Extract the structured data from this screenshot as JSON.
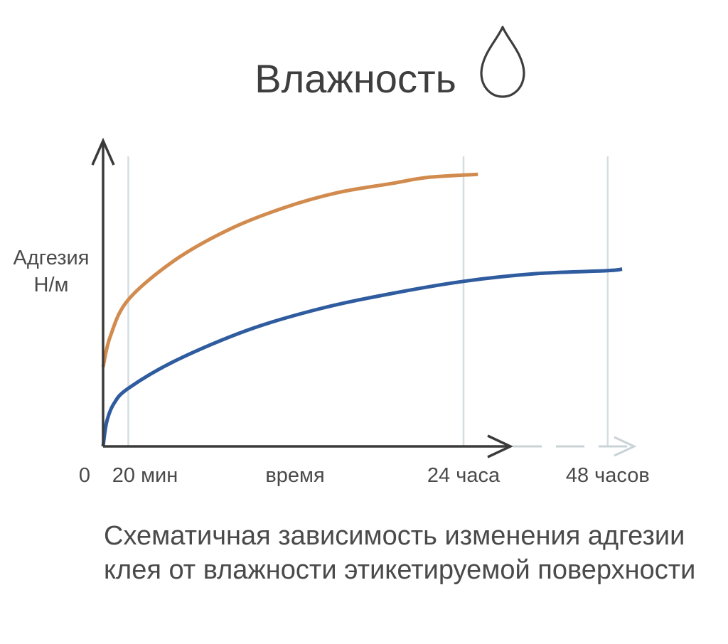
{
  "header": {
    "title": "Влажность",
    "icon": "water-drop-icon"
  },
  "chart_data": {
    "type": "line",
    "ylabel_lines": [
      "Адгезия",
      "Н/м"
    ],
    "xlabel": "время",
    "x_ticks": [
      {
        "label": "0",
        "pos": 0
      },
      {
        "label": "20 мин",
        "pos": 0.07
      },
      {
        "label": "24 часа",
        "pos": 1.0
      },
      {
        "label": "48 часов",
        "pos": 1.4
      }
    ],
    "gridlines_at": [
      0.07,
      1.0,
      1.4
    ],
    "xlim": [
      0,
      1.6
    ],
    "ylim": [
      0,
      1
    ],
    "series": [
      {
        "color": "#d28b4e",
        "points": [
          [
            0,
            0.26
          ],
          [
            0.02,
            0.36
          ],
          [
            0.07,
            0.48
          ],
          [
            0.2,
            0.61
          ],
          [
            0.35,
            0.71
          ],
          [
            0.5,
            0.78
          ],
          [
            0.65,
            0.83
          ],
          [
            0.8,
            0.86
          ],
          [
            0.9,
            0.88
          ],
          [
            1.04,
            0.89
          ]
        ]
      },
      {
        "color": "#2f5b9f",
        "points": [
          [
            0,
            0.0
          ],
          [
            0.01,
            0.08
          ],
          [
            0.03,
            0.14
          ],
          [
            0.07,
            0.19
          ],
          [
            0.2,
            0.28
          ],
          [
            0.4,
            0.38
          ],
          [
            0.6,
            0.45
          ],
          [
            0.8,
            0.5
          ],
          [
            1.0,
            0.54
          ],
          [
            1.2,
            0.565
          ],
          [
            1.4,
            0.575
          ],
          [
            1.44,
            0.58
          ]
        ]
      }
    ],
    "grid": true,
    "legend": "none"
  },
  "caption": {
    "line1": "Схематичная зависимость изменения адгезии",
    "line2": "клея от влажности этикетируемой поверхности"
  },
  "colors": {
    "axis": "#3a3a3a",
    "grid": "#d4dde0",
    "dashed_extension": "#c9d3d6",
    "orange_series": "#d28b4e",
    "blue_series": "#2f5b9f"
  }
}
